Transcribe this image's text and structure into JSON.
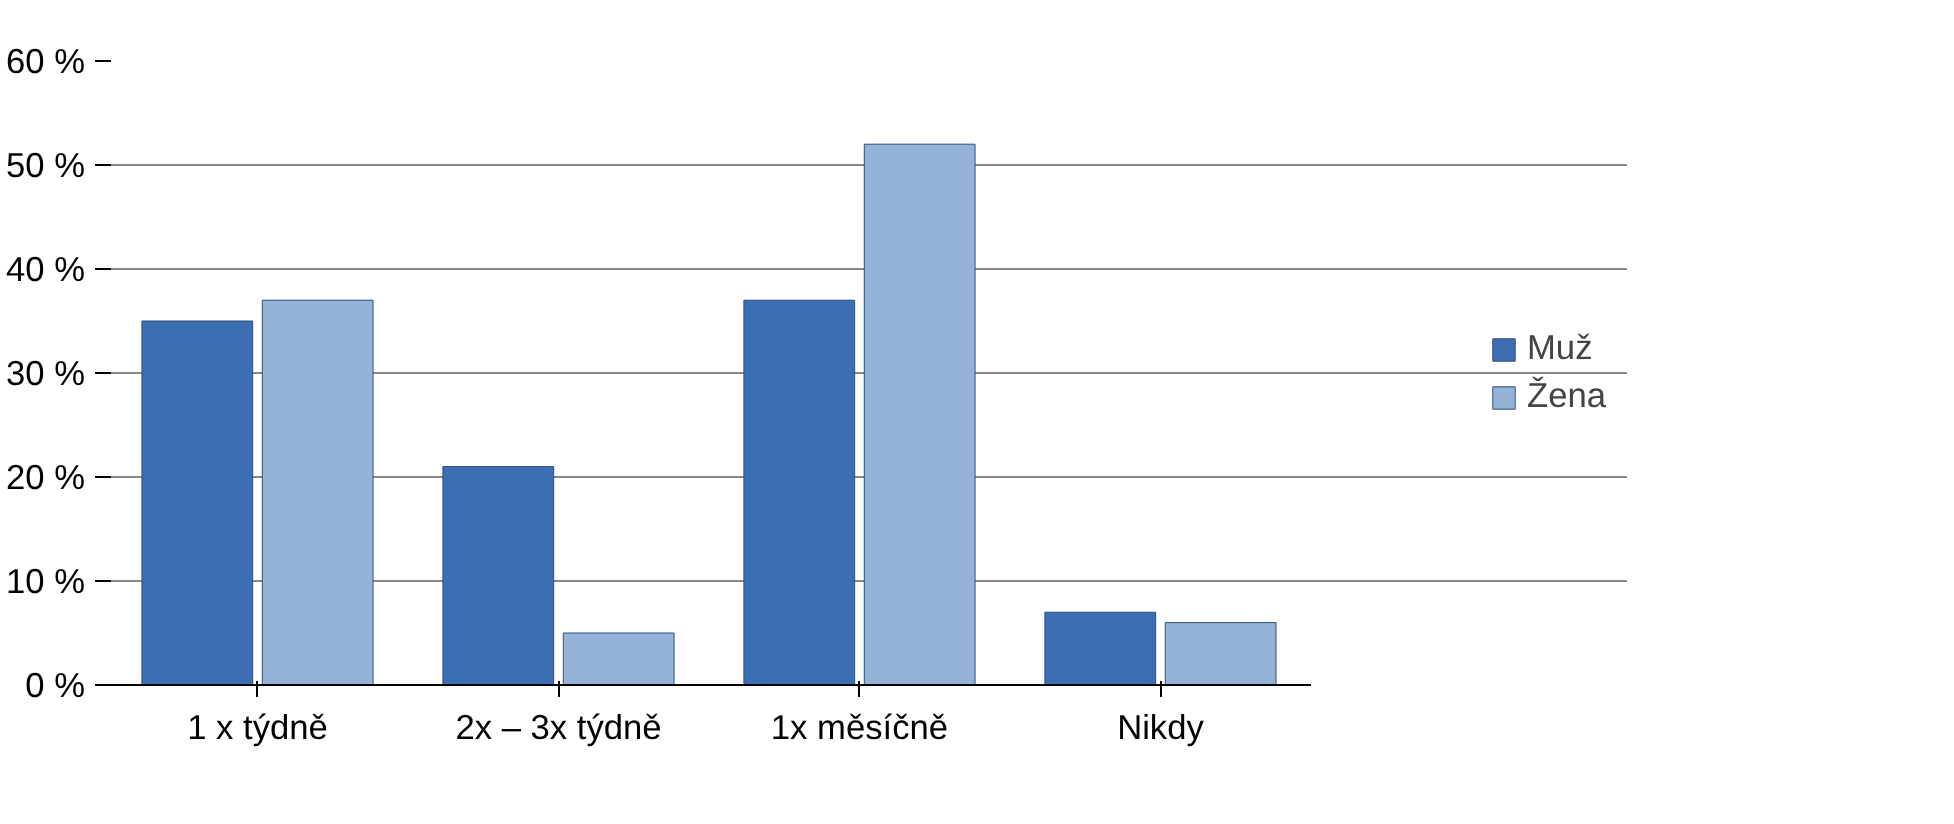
{
  "chart_data": {
    "type": "bar",
    "categories": [
      "1 x týdně",
      "2x – 3x týdně",
      "1x měsíčně",
      "Nikdy"
    ],
    "series": [
      {
        "name": "Muž",
        "color": "#3c6eb4",
        "values": [
          35,
          21,
          37,
          7
        ]
      },
      {
        "name": "Žena",
        "color": "#95b3d7",
        "values": [
          37,
          5,
          52,
          6
        ]
      }
    ],
    "ylim": [
      0,
      60
    ],
    "yticks": [
      {
        "value": 0,
        "label": "0 %"
      },
      {
        "value": 10,
        "label": "10 %"
      },
      {
        "value": 20,
        "label": "20 %"
      },
      {
        "value": 30,
        "label": "30 %"
      },
      {
        "value": 40,
        "label": "40 %"
      },
      {
        "value": 50,
        "label": "50 %"
      },
      {
        "value": 60,
        "label": "60 %"
      }
    ],
    "grid": "y",
    "legend": "right"
  }
}
